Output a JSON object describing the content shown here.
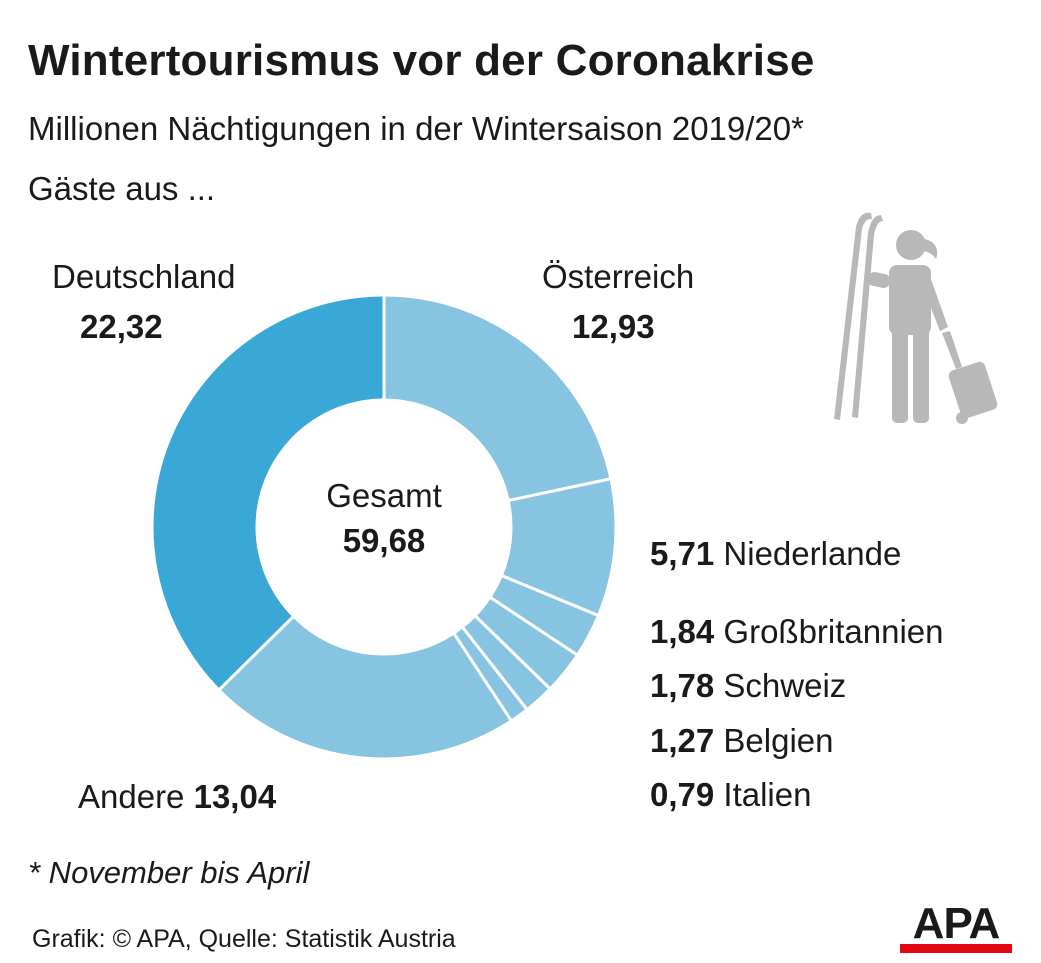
{
  "title": "Wintertourismus vor der Coronakrise",
  "subtitle": "Millionen Nächtigungen in der Wintersaison 2019/20*",
  "subtitle2": "Gäste aus ...",
  "center": {
    "label": "Gesamt",
    "value": "59,68"
  },
  "labels": {
    "deutschland_name": "Deutschland",
    "deutschland_value": "22,32",
    "oesterreich_name": "Österreich",
    "oesterreich_value": "12,93",
    "andere_name": "Andere",
    "andere_value": "13,04",
    "list": [
      {
        "value": "5,71",
        "name": "Niederlande"
      },
      {
        "value": "1,84",
        "name": "Großbritannien"
      },
      {
        "value": "1,78",
        "name": "Schweiz"
      },
      {
        "value": "1,27",
        "name": "Belgien"
      },
      {
        "value": "0,79",
        "name": "Italien"
      }
    ]
  },
  "footnote": "* November bis April",
  "source": "Grafik: © APA, Quelle: Statistik Austria",
  "logo": "APA",
  "icon": "skier-with-suitcase-icon",
  "colors": {
    "deutschland": "#3aa8d6",
    "others": "#87c4e1",
    "separator": "#ffffff",
    "icon": "#b8b8b8",
    "logo_bar": "#e30613"
  },
  "chart_data": {
    "type": "pie",
    "categories": [
      "Österreich",
      "Niederlande",
      "Großbritannien",
      "Schweiz",
      "Belgien",
      "Italien",
      "Andere",
      "Deutschland"
    ],
    "values": [
      12.93,
      5.71,
      1.84,
      1.78,
      1.27,
      0.79,
      13.04,
      22.32
    ],
    "total": 59.68,
    "title": "Wintertourismus vor der Coronakrise",
    "subtitle": "Millionen Nächtigungen in der Wintersaison 2019/20*"
  }
}
